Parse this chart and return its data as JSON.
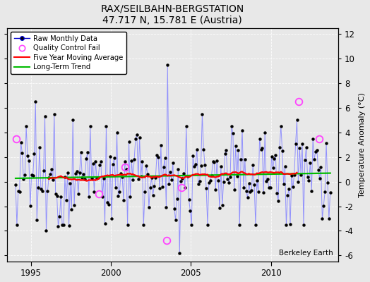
{
  "title": "RAX/SEILBAHN-BERGSTATION",
  "subtitle": "47.717 N, 15.781 E (Austria)",
  "ylabel": "Temperature Anomaly (°C)",
  "watermark": "Berkeley Earth",
  "xlim": [
    1993.5,
    2014.2
  ],
  "ylim": [
    -6.5,
    12.5
  ],
  "yticks": [
    -6,
    -4,
    -2,
    0,
    2,
    4,
    6,
    8,
    10,
    12
  ],
  "xticks": [
    1995,
    2000,
    2005,
    2010
  ],
  "background_color": "#e8e8e8",
  "raw_line_color": "#8888ff",
  "raw_dot_color": "#000000",
  "ma_color": "#ff0000",
  "trend_color": "#00bb00",
  "qc_color": "#ff44ff",
  "legend_raw_color": "#0000cc",
  "figwidth": 5.24,
  "figheight": 4.0,
  "dpi": 100
}
